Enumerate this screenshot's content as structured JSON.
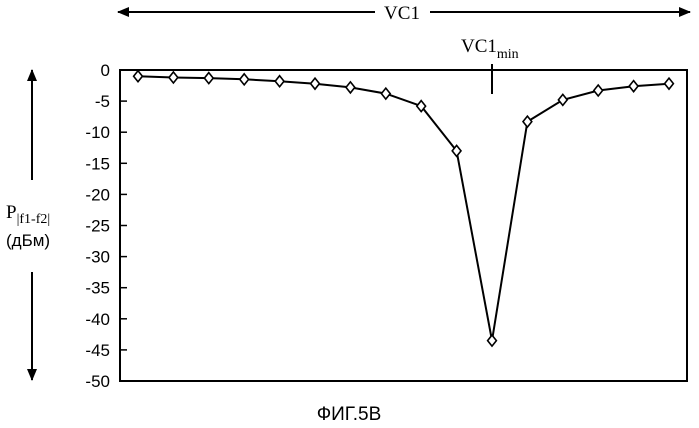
{
  "chart_data": {
    "type": "line",
    "title": "",
    "xlabel": "VC1",
    "ylabel_main": "P",
    "ylabel_subscript": "|f1-f2|",
    "ylabel_unit": "(дБм)",
    "x_marker_label_main": "VC1",
    "x_marker_label_subscript": "min",
    "ylim": [
      -50,
      0
    ],
    "yticks": [
      "0",
      "-5",
      "-10",
      "-15",
      "-20",
      "-25",
      "-30",
      "-35",
      "-40",
      "-45",
      "-50"
    ],
    "grid": false,
    "marker": "diamond",
    "x": [
      1,
      2,
      3,
      4,
      5,
      6,
      7,
      8,
      9,
      10,
      11,
      12,
      13,
      14,
      15,
      16
    ],
    "values": [
      -1.0,
      -1.2,
      -1.3,
      -1.5,
      -1.8,
      -2.2,
      -2.8,
      -3.8,
      -5.8,
      -13.0,
      -43.5,
      -8.3,
      -4.8,
      -3.3,
      -2.6,
      -2.2
    ],
    "marker_x": 11
  },
  "caption": "ФИГ.5В"
}
